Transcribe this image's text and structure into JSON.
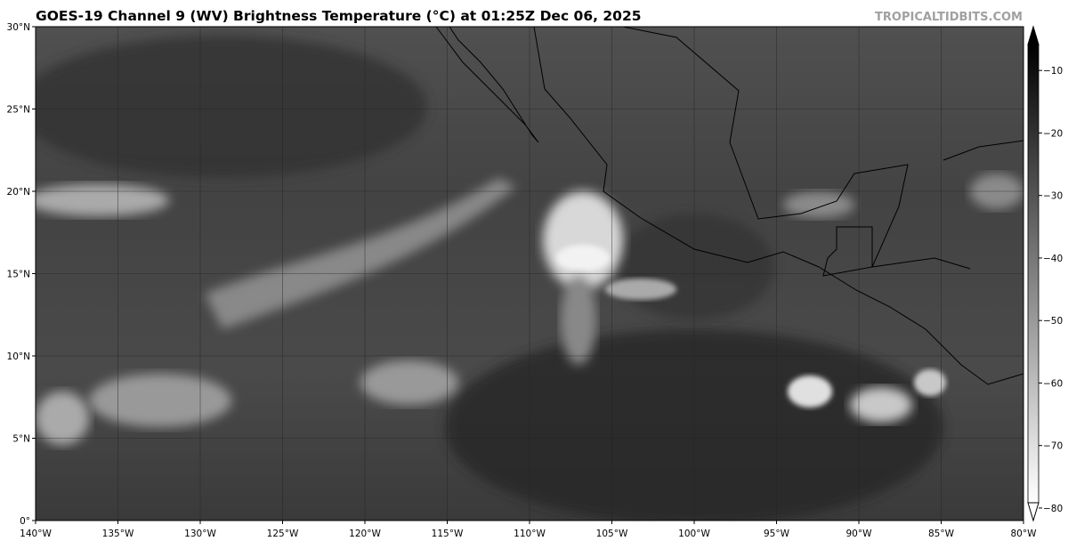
{
  "title": "GOES-19 Channel 9 (WV) Brightness Temperature (°C) at 01:25Z Dec 06, 2025",
  "watermark": "TROPICALTIDBITS.COM",
  "map": {
    "extent": {
      "lon": [
        -140,
        -80
      ],
      "lat": [
        0,
        30
      ]
    },
    "lat_labels": [
      {
        "value": 0,
        "label": "0°"
      },
      {
        "value": 5,
        "label": "5°N"
      },
      {
        "value": 10,
        "label": "10°N"
      },
      {
        "value": 15,
        "label": "15°N"
      },
      {
        "value": 20,
        "label": "20°N"
      },
      {
        "value": 25,
        "label": "25°N"
      },
      {
        "value": 30,
        "label": "30°N"
      }
    ],
    "lon_labels": [
      {
        "value": -140,
        "label": "140°W"
      },
      {
        "value": -135,
        "label": "135°W"
      },
      {
        "value": -130,
        "label": "130°W"
      },
      {
        "value": -125,
        "label": "125°W"
      },
      {
        "value": -120,
        "label": "120°W"
      },
      {
        "value": -115,
        "label": "115°W"
      },
      {
        "value": -110,
        "label": "110°W"
      },
      {
        "value": -105,
        "label": "105°W"
      },
      {
        "value": -100,
        "label": "100°W"
      },
      {
        "value": -95,
        "label": "95°W"
      },
      {
        "value": -90,
        "label": "90°W"
      },
      {
        "value": -85,
        "label": "85°W"
      },
      {
        "value": -80,
        "label": "80°W"
      }
    ],
    "gridlines": true,
    "coastline_color": "#000000"
  },
  "colorbar": {
    "range": [
      -82,
      -3
    ],
    "ticks": [
      {
        "value": -10,
        "label": "−10"
      },
      {
        "value": -20,
        "label": "−20"
      },
      {
        "value": -30,
        "label": "−30"
      },
      {
        "value": -40,
        "label": "−40"
      },
      {
        "value": -50,
        "label": "−50"
      },
      {
        "value": -60,
        "label": "−60"
      },
      {
        "value": -70,
        "label": "−70"
      },
      {
        "value": -80,
        "label": "−80"
      }
    ],
    "colors": {
      "warm": "#000000",
      "cold": "#ffffff"
    },
    "extend": "both"
  }
}
